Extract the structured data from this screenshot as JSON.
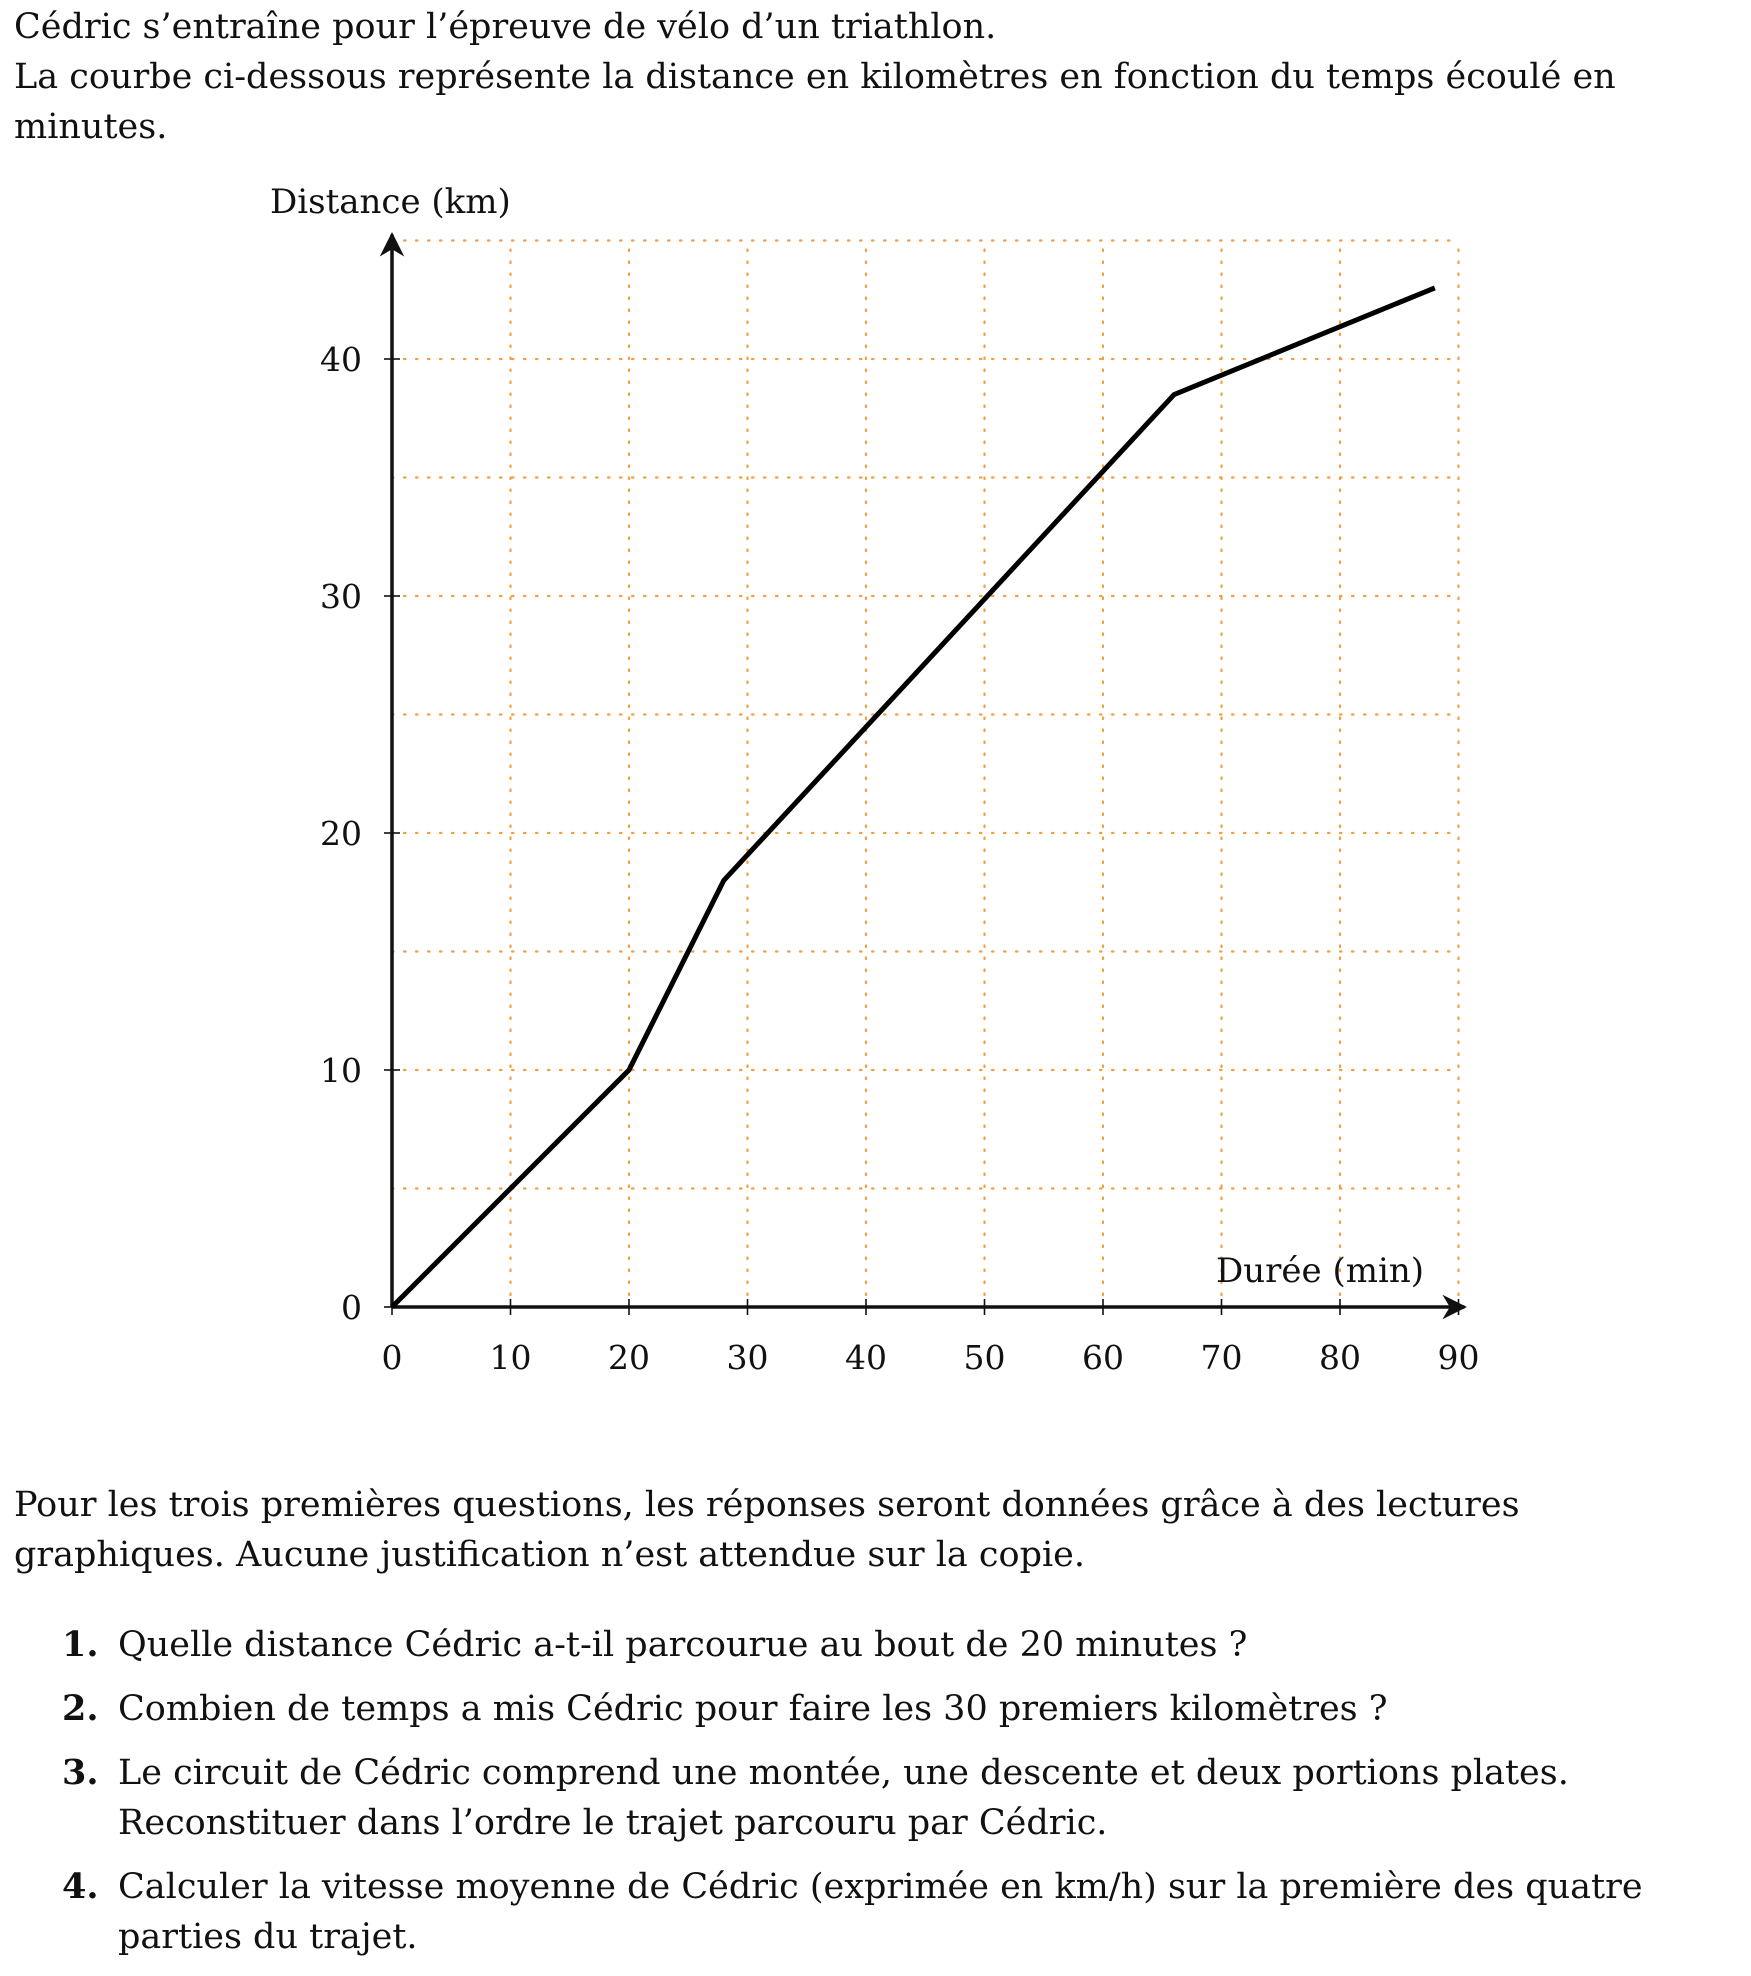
{
  "intro": {
    "line1": "Cédric s’entraîne pour l’épreuve de vélo d’un triathlon.",
    "line2": "La courbe ci-dessous représente la distance en kilomètres en fonction du temps écoulé en minutes."
  },
  "chart_data": {
    "type": "line",
    "xlabel": "Durée (min)",
    "ylabel": "Distance (km)",
    "xlim": [
      0,
      90
    ],
    "ylim": [
      0,
      45
    ],
    "x_ticks": [
      0,
      10,
      20,
      30,
      40,
      50,
      60,
      70,
      80,
      90
    ],
    "y_ticks": [
      0,
      10,
      20,
      30,
      40
    ],
    "grid": true,
    "grid_step_x": 10,
    "grid_step_y": 5,
    "grid_color": "#f0a040",
    "line_color": "#000000",
    "series": [
      {
        "x": [
          0,
          20,
          28,
          66,
          88
        ],
        "y": [
          0,
          10,
          18,
          38.5,
          43
        ]
      }
    ]
  },
  "note": "Pour les trois premières questions, les réponses seront données grâce à des lectures graphiques. Aucune justification n’est attendue sur la copie.",
  "questions": [
    {
      "num": "1.",
      "text": "Quelle distance Cédric a-t-il parcourue au bout de 20 minutes ?"
    },
    {
      "num": "2.",
      "text": "Combien de temps a mis Cédric pour faire les 30 premiers kilomètres ?"
    },
    {
      "num": "3.",
      "text": "Le circuit de Cédric comprend une montée, une descente et deux portions plates. Reconstituer dans l’ordre le trajet parcouru par Cédric."
    },
    {
      "num": "4.",
      "text": "Calculer la vitesse moyenne de Cédric (exprimée en km/h) sur la première des quatre parties du trajet."
    }
  ]
}
